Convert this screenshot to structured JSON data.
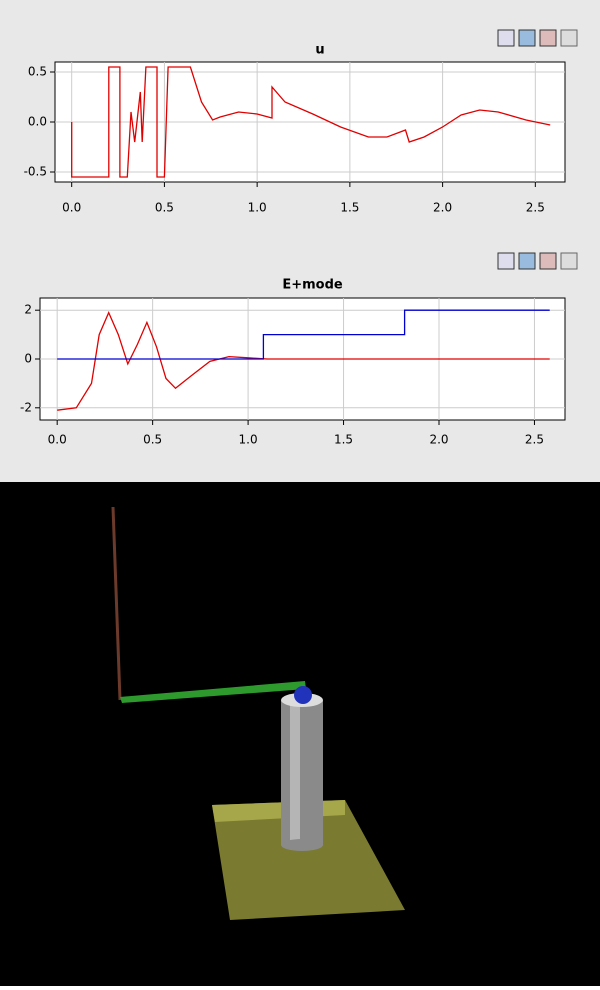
{
  "chart_data": [
    {
      "type": "line",
      "title": "u",
      "xlim": [
        -0.09,
        2.66
      ],
      "ylim": [
        -0.6,
        0.6
      ],
      "xticks": [
        {
          "value": 0,
          "label": "0.0"
        },
        {
          "value": 0.5,
          "label": "0.5"
        },
        {
          "value": 1,
          "label": "1.0"
        },
        {
          "value": 1.5,
          "label": "1.5"
        },
        {
          "value": 2,
          "label": "2.0"
        },
        {
          "value": 2.5,
          "label": "2.5"
        }
      ],
      "yticks": [
        {
          "value": -0.5,
          "label": "-0.5"
        },
        {
          "value": 0,
          "label": "0.0"
        },
        {
          "value": 0.5,
          "label": "0.5"
        }
      ],
      "grid": true,
      "series": [
        {
          "color": "#e00000",
          "x": [
            0,
            0,
            0.2,
            0.2,
            0.26,
            0.26,
            0.3,
            0.32,
            0.34,
            0.37,
            0.38,
            0.4,
            0.46,
            0.46,
            0.5,
            0.52,
            0.64,
            0.7,
            0.76,
            0.8,
            0.9,
            1.0,
            1.08,
            1.08,
            1.15,
            1.3,
            1.45,
            1.6,
            1.7,
            1.8,
            1.82,
            1.9,
            2.0,
            2.1,
            2.2,
            2.3,
            2.45,
            2.58
          ],
          "values": [
            0,
            -0.55,
            -0.55,
            0.55,
            0.55,
            -0.55,
            -0.55,
            0.1,
            -0.2,
            0.3,
            -0.2,
            0.55,
            0.55,
            -0.55,
            -0.55,
            0.55,
            0.55,
            0.2,
            0.02,
            0.05,
            0.1,
            0.08,
            0.04,
            0.35,
            0.2,
            0.08,
            -0.05,
            -0.15,
            -0.15,
            -0.08,
            -0.2,
            -0.15,
            -0.05,
            0.07,
            0.12,
            0.1,
            0.02,
            -0.03
          ]
        }
      ]
    },
    {
      "type": "line",
      "title": "E+mode",
      "xlim": [
        -0.09,
        2.66
      ],
      "ylim": [
        -2.5,
        2.5
      ],
      "xticks": [
        {
          "value": 0,
          "label": "0.0"
        },
        {
          "value": 0.5,
          "label": "0.5"
        },
        {
          "value": 1,
          "label": "1.0"
        },
        {
          "value": 1.5,
          "label": "1.5"
        },
        {
          "value": 2,
          "label": "2.0"
        },
        {
          "value": 2.5,
          "label": "2.5"
        }
      ],
      "yticks": [
        -2,
        0,
        2
      ],
      "grid": true,
      "series": [
        {
          "color": "#e00000",
          "x": [
            0,
            0.1,
            0.18,
            0.22,
            0.27,
            0.32,
            0.37,
            0.42,
            0.47,
            0.52,
            0.57,
            0.62,
            0.7,
            0.8,
            0.9,
            1.0,
            1.1,
            2.58
          ],
          "values": [
            -2.1,
            -2.0,
            -1,
            1,
            1.9,
            1,
            -0.2,
            0.6,
            1.5,
            0.5,
            -0.8,
            -1.2,
            -0.7,
            -0.1,
            0.1,
            0.05,
            0,
            0
          ]
        },
        {
          "color": "#0000d0",
          "x": [
            0,
            1.08,
            1.08,
            1.82,
            1.82,
            2.58
          ],
          "values": [
            0,
            0,
            1,
            1,
            2,
            2
          ]
        }
      ]
    }
  ]
}
